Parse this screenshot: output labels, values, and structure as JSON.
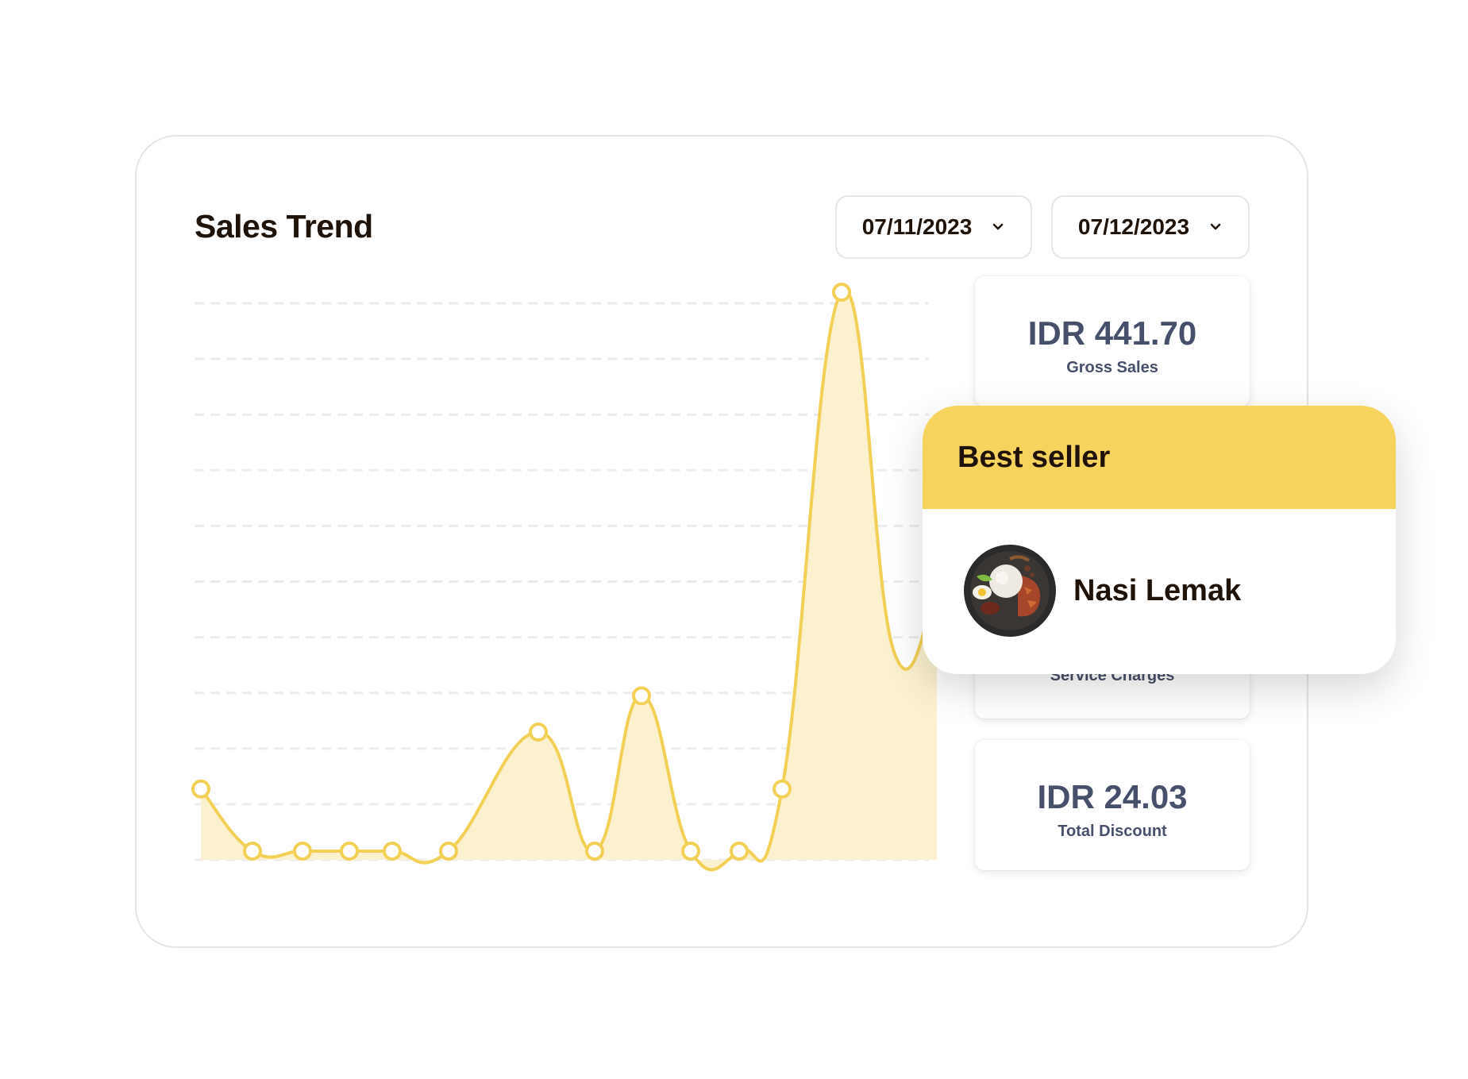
{
  "title": "Sales Trend",
  "date_from": "07/11/2023",
  "date_to": "07/12/2023",
  "stats": {
    "gross_sales": {
      "value": "IDR 441.70",
      "label": "Gross Sales"
    },
    "service_charges": {
      "label": "Service Charges"
    },
    "total_discount": {
      "value": "IDR 24.03",
      "label": "Total Discount"
    }
  },
  "best_seller": {
    "heading": "Best seller",
    "item_name": "Nasi Lemak"
  },
  "colors": {
    "accent": "#f5d35c",
    "line": "#f2cf55",
    "fill": "#fbf1cf",
    "stat_text": "#46506a",
    "title_text": "#1f1208"
  },
  "icons": {
    "dropdown": "chevron-down-icon",
    "food": "nasi-lemak-photo"
  },
  "chart_data": {
    "type": "area",
    "x": [
      1,
      2,
      3,
      4,
      5,
      6,
      7,
      8,
      9,
      10,
      11,
      12,
      13,
      14,
      15
    ],
    "values": [
      12,
      0,
      0,
      0,
      0,
      0,
      23,
      0,
      30,
      0,
      0,
      12,
      108,
      39,
      51
    ],
    "ylim": [
      -2,
      110
    ],
    "gridlines": 11,
    "grid": true,
    "legend": "none",
    "title": "",
    "xlabel": "",
    "ylabel": ""
  }
}
